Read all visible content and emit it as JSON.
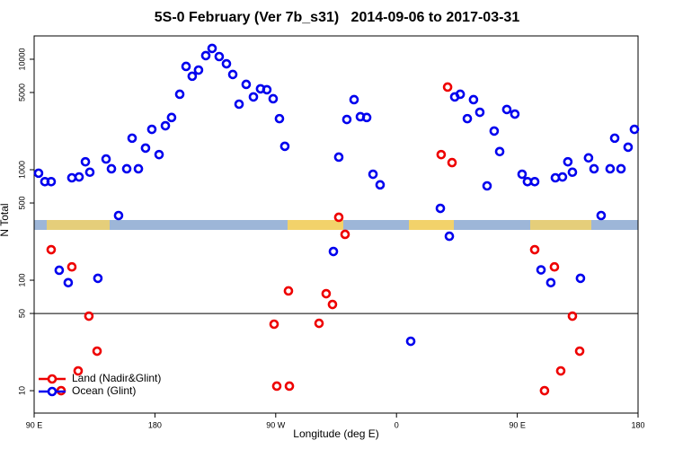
{
  "chart_data": {
    "type": "scatter",
    "title": "5S-0 February (Ver 7b_s31)   2014-09-06 to 2017-03-31",
    "x_label": "Longitude (deg E)",
    "y_label": "N Total",
    "log_y": true,
    "legend": "bottomleft",
    "reference_line": 50,
    "xlim": [
      90,
      540
    ],
    "xticks": [
      {
        "value": 90,
        "label": "90 E"
      },
      {
        "value": 180,
        "label": "180"
      },
      {
        "value": 270,
        "label": "90 W"
      },
      {
        "value": 360,
        "label": "0"
      },
      {
        "value": 450,
        "label": "90 E"
      },
      {
        "value": 540,
        "label": "180"
      }
    ],
    "ylim": [
      6.27,
      16260
    ],
    "yticks": [
      10,
      50,
      100,
      500,
      1000,
      5000,
      10000
    ],
    "series": [
      {
        "name": "Land (Nadir&Glint)",
        "color": "#ee0000",
        "x": [
          102.7,
          110.1,
          118.1,
          122.8,
          130.8,
          136.9,
          268.8,
          270.8,
          279.5,
          280.2,
          302.3,
          307.6,
          312.3,
          317,
          321.7,
          393.3,
          398.1,
          401.4,
          463,
          470.3,
          477.7,
          482.4,
          491.1,
          496.5
        ],
        "values": [
          189,
          10,
          132,
          15.1,
          47.3,
          22.8,
          40,
          11,
          80,
          11,
          40.7,
          75.5,
          60.3,
          371,
          260,
          1370,
          5600,
          1160,
          189,
          10,
          132,
          15.1,
          47.3,
          22.8
        ]
      },
      {
        "name": "Ocean (Glint)",
        "color": "#0000ee",
        "x": [
          93.3,
          98,
          102.7,
          108.7,
          115.4,
          118.1,
          123.5,
          128.2,
          131.5,
          137.5,
          143.6,
          147.6,
          152.9,
          159,
          163,
          167.7,
          173,
          177.7,
          183.1,
          187.8,
          192.4,
          198.5,
          203.2,
          207.8,
          212.5,
          217.9,
          222.6,
          227.9,
          233.3,
          238,
          242.7,
          248,
          253.4,
          258.7,
          263.4,
          268.1,
          272.8,
          276.8,
          313,
          317,
          323,
          328.4,
          333.1,
          337.8,
          342.5,
          347.8,
          370.6,
          392.7,
          399.4,
          403.4,
          407.5,
          412.8,
          417.4,
          422.1,
          427.5,
          432.8,
          436.9,
          442.2,
          448.2,
          453.6,
          457.6,
          463,
          467.7,
          475,
          478.4,
          483.7,
          487.7,
          491.1,
          497.1,
          503.1,
          507.2,
          512.5,
          519.2,
          522.6,
          527.3,
          532.6,
          537.3
        ],
        "values": [
          930,
          780,
          780,
          123,
          95,
          845,
          860,
          1180,
          950,
          104,
          1250,
          1020,
          385,
          1020,
          1930,
          1020,
          1570,
          2320,
          1370,
          2500,
          2970,
          4820,
          8610,
          7020,
          7980,
          10790,
          12530,
          10570,
          9100,
          7280,
          3920,
          5920,
          4560,
          5400,
          5300,
          4390,
          2900,
          1630,
          182,
          1300,
          2850,
          4310,
          3020,
          2970,
          910,
          730,
          28,
          447,
          250,
          4560,
          4820,
          2900,
          4310,
          3310,
          714,
          2240,
          1460,
          3510,
          3190,
          910,
          780,
          780,
          124,
          95,
          845,
          860,
          1180,
          950,
          104,
          1280,
          1020,
          385,
          1020,
          1930,
          1020,
          1600,
          2320
        ]
      }
    ]
  }
}
